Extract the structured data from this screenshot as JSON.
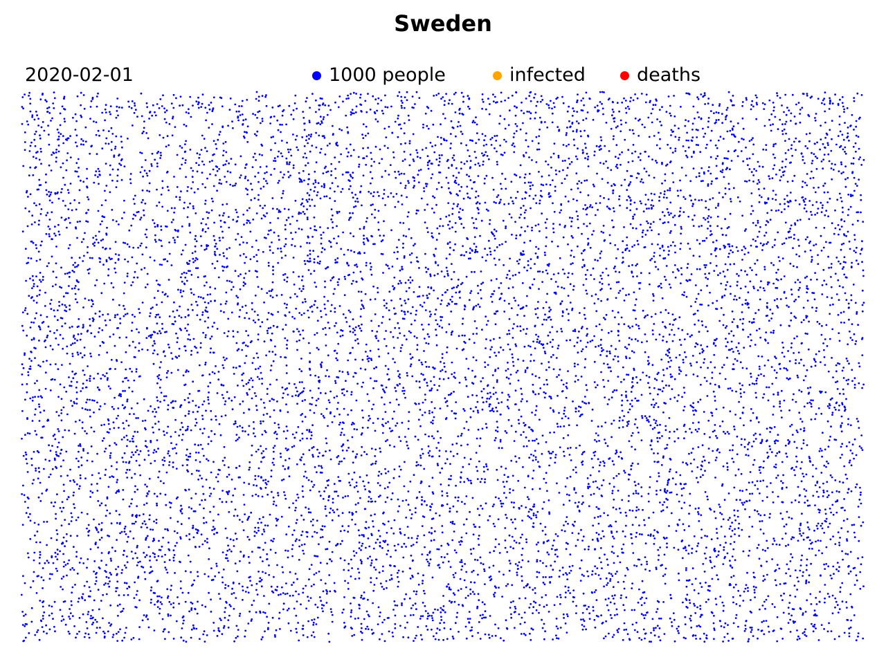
{
  "chart_data": {
    "type": "scatter",
    "title": "Sweden",
    "date": "2020-02-01",
    "legend_placement": "top",
    "legend": [
      {
        "key": "people",
        "label": "1000 people",
        "color": "#0000ff"
      },
      {
        "key": "infected",
        "label": "infected",
        "color": "#ffa500"
      },
      {
        "key": "deaths",
        "label": "deaths",
        "color": "#ff0000"
      }
    ],
    "series": [
      {
        "key": "people",
        "count": 10000,
        "color": "#0000ff"
      },
      {
        "key": "infected",
        "count": 0,
        "color": "#ffa500"
      },
      {
        "key": "deaths",
        "count": 0,
        "color": "#ff0000"
      }
    ],
    "xlim": [
      0,
      1
    ],
    "ylim": [
      0,
      1
    ],
    "axes_visible": false,
    "grid": false
  }
}
